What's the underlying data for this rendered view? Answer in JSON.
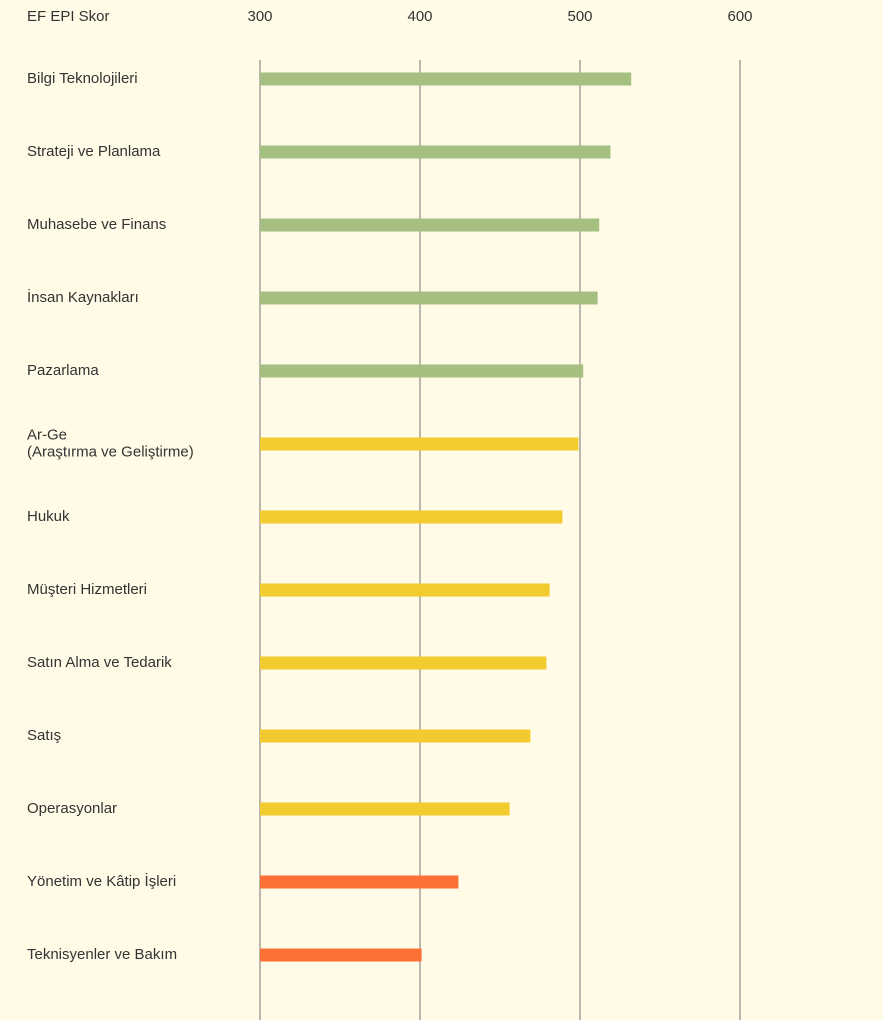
{
  "chart_data": {
    "type": "hbar",
    "xlabel": "EF EPI Skor",
    "categories": [
      "Bilgi Teknolojileri",
      "Strateji ve Planlama",
      "Muhasebe ve Finans",
      "İnsan Kaynakları",
      "Pazarlama",
      "Ar-Ge\n(Araştırma ve Geliştirme)",
      "Hukuk",
      "Müşteri Hizmetleri",
      "Satın Alma ve Tedarik",
      "Satış",
      "Operasyonlar",
      "Yönetim ve Kâtip İşleri",
      "Teknisyenler ve Bakım"
    ],
    "values": [
      532,
      519,
      512,
      511,
      502,
      499,
      489,
      481,
      479,
      469,
      456,
      424,
      401
    ],
    "colors": [
      "#a5bf80",
      "#a5bf80",
      "#a5bf80",
      "#a5bf80",
      "#a5bf80",
      "#f2cb2e",
      "#f2cb2e",
      "#f2cb2e",
      "#f2cb2e",
      "#f2cb2e",
      "#f2cb2e",
      "#fd7036",
      "#fd7036"
    ],
    "xlim": [
      300,
      600
    ],
    "xticks": [
      300,
      400,
      500,
      600
    ],
    "grid": true
  }
}
